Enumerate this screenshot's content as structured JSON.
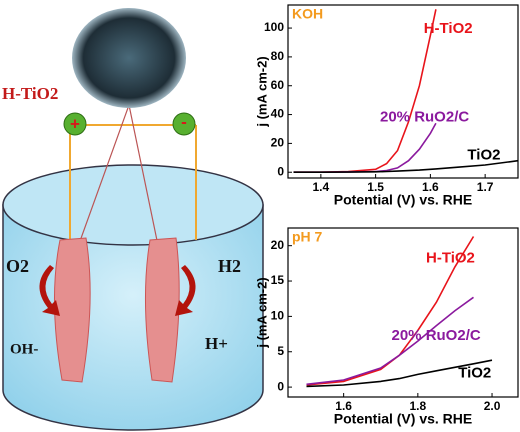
{
  "schematic": {
    "catalyst": "H-TiO2",
    "plus": "+",
    "minus": "-",
    "left_gas": "O2",
    "right_gas": "H2",
    "left_ion": "OH-",
    "right_ion": "H+"
  },
  "chart_data": [
    {
      "type": "line",
      "title": "KOH",
      "xlabel": "Potential (V) vs. RHE",
      "ylabel": "j (mA cm-2)",
      "x": [
        1.35,
        1.4,
        1.45,
        1.5,
        1.52,
        1.54,
        1.56,
        1.58,
        1.6,
        1.61,
        1.65,
        1.7,
        1.76
      ],
      "series": [
        {
          "name": "H-TiO2",
          "color": "#e8141b",
          "values": [
            0,
            0,
            0.5,
            2,
            6,
            15,
            35,
            60,
            95,
            113,
            null,
            null,
            null
          ]
        },
        {
          "name": "20% RuO2/C",
          "color": "#8b1a9e",
          "values": [
            0,
            0,
            0.2,
            0.5,
            1.2,
            3,
            8,
            16,
            27,
            34,
            null,
            null,
            null
          ]
        },
        {
          "name": "TiO2",
          "color": "#000000",
          "values": [
            0,
            0,
            0.1,
            0.3,
            0.5,
            0.8,
            1.1,
            1.5,
            2,
            2.3,
            3.5,
            5,
            8
          ]
        }
      ],
      "xlim": [
        1.34,
        1.76
      ],
      "ylim": [
        -4,
        116
      ],
      "xticks": [
        1.4,
        1.5,
        1.6,
        1.7
      ],
      "yticks": [
        0,
        20,
        40,
        60,
        80,
        100
      ]
    },
    {
      "type": "line",
      "title": "pH 7",
      "xlabel": "Potential (V) vs. RHE",
      "ylabel": "j (mA cm-2)",
      "x": [
        1.5,
        1.6,
        1.7,
        1.75,
        1.8,
        1.85,
        1.9,
        1.95,
        2.0
      ],
      "series": [
        {
          "name": "H-TiO2",
          "color": "#e8141b",
          "values": [
            0.3,
            0.8,
            2.5,
            4.5,
            8,
            12,
            17,
            21.3,
            null
          ]
        },
        {
          "name": "20% RuO2/C",
          "color": "#8b1a9e",
          "values": [
            0.4,
            1,
            2.7,
            4.5,
            6.5,
            8.7,
            10.8,
            12.7,
            null
          ]
        },
        {
          "name": "TiO2",
          "color": "#000000",
          "values": [
            0.1,
            0.3,
            0.8,
            1.2,
            1.8,
            2.3,
            2.8,
            3.3,
            3.8
          ]
        }
      ],
      "xlim": [
        1.45,
        2.07
      ],
      "ylim": [
        -1.4,
        22.5
      ],
      "xticks": [
        1.6,
        1.8,
        {
          "value": 2,
          "label": "2.0"
        }
      ],
      "yticks": [
        0,
        5,
        10,
        15,
        20
      ]
    }
  ]
}
